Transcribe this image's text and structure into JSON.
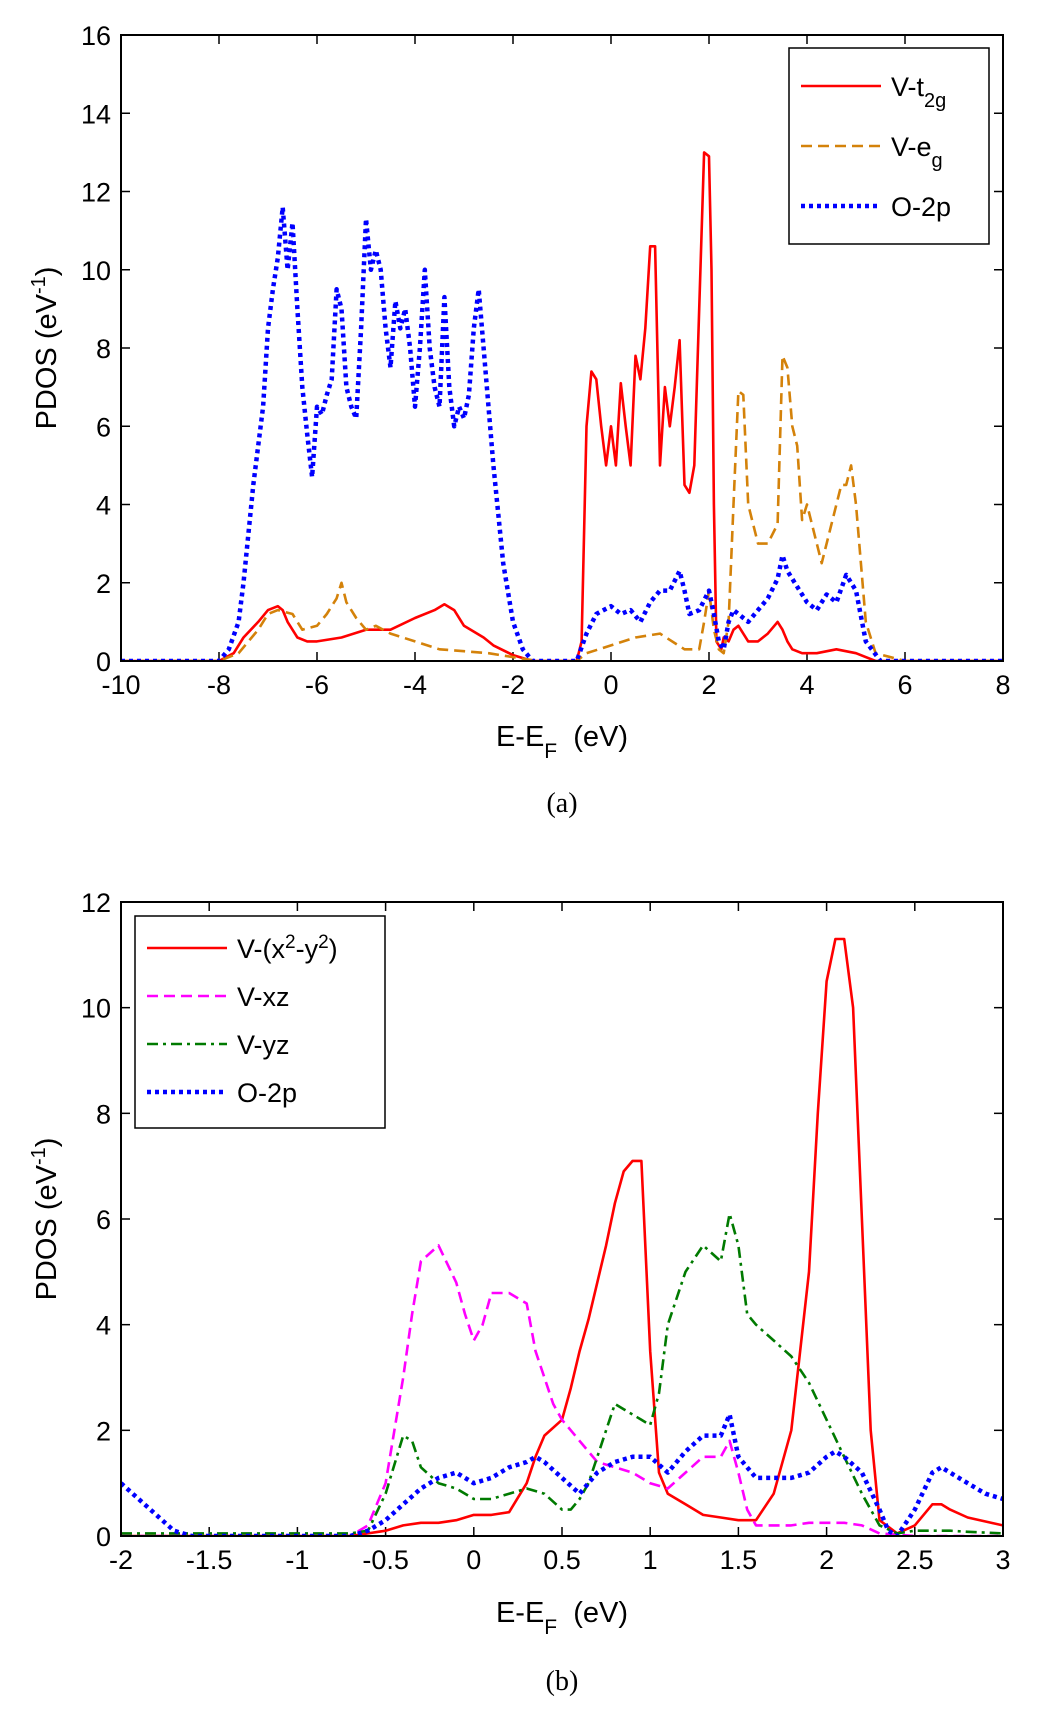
{
  "chart_data": [
    {
      "type": "line",
      "panel_label": "(a)",
      "xlabel": {
        "main": "E-E",
        "sub": "F",
        "unit": "(eV)"
      },
      "ylabel": {
        "main": "PDOS (eV",
        "sup": "-1",
        "close": ")"
      },
      "xlim": [
        -10,
        8
      ],
      "ylim": [
        0,
        16
      ],
      "xticks": [
        -10,
        -8,
        -6,
        -4,
        -2,
        0,
        2,
        4,
        6,
        8
      ],
      "xtick_labels": [
        "-10",
        "-8",
        "-6",
        "-4",
        "-2",
        "0",
        "2",
        "4",
        "6",
        "8"
      ],
      "yticks": [
        0,
        2,
        4,
        6,
        8,
        10,
        12,
        14,
        16
      ],
      "ytick_labels": [
        "0",
        "2",
        "4",
        "6",
        "8",
        "10",
        "12",
        "14",
        "16"
      ],
      "legend_position": "top-right",
      "series": [
        {
          "name": "V-t2g",
          "label_main": "V-t",
          "label_sub": "2g",
          "color": "#ff0000",
          "dash": "solid",
          "x": [
            -10,
            -8,
            -7.7,
            -7.5,
            -7.2,
            -7.0,
            -6.8,
            -6.7,
            -6.6,
            -6.4,
            -6.2,
            -6.0,
            -5.5,
            -5.0,
            -4.5,
            -4.0,
            -3.6,
            -3.4,
            -3.2,
            -3.0,
            -2.6,
            -2.4,
            -2.0,
            -1.6,
            -0.7,
            -0.6,
            -0.5,
            -0.4,
            -0.3,
            -0.2,
            -0.1,
            0,
            0.1,
            0.2,
            0.3,
            0.4,
            0.5,
            0.6,
            0.7,
            0.8,
            0.9,
            1.0,
            1.1,
            1.2,
            1.3,
            1.4,
            1.5,
            1.6,
            1.7,
            1.8,
            1.9,
            2.0,
            2.05,
            2.1,
            2.15,
            2.25,
            2.3,
            2.4,
            2.5,
            2.6,
            2.8,
            3.0,
            3.2,
            3.4,
            3.5,
            3.6,
            3.7,
            3.9,
            4.2,
            4.6,
            5.0,
            5.4,
            6,
            8
          ],
          "y": [
            0,
            0,
            0.2,
            0.6,
            1.0,
            1.3,
            1.4,
            1.3,
            1.0,
            0.6,
            0.5,
            0.5,
            0.6,
            0.8,
            0.8,
            1.1,
            1.3,
            1.45,
            1.3,
            0.9,
            0.6,
            0.4,
            0.15,
            0,
            0,
            0.5,
            6.0,
            7.4,
            7.2,
            6.0,
            5.0,
            6.0,
            5.0,
            7.1,
            6.0,
            5.0,
            7.8,
            7.2,
            8.5,
            10.6,
            10.6,
            5.0,
            7.0,
            6.0,
            7.0,
            8.2,
            4.5,
            4.3,
            5.0,
            9.0,
            13.0,
            12.9,
            10.0,
            4.0,
            0.5,
            0.3,
            0.6,
            0.5,
            0.8,
            0.9,
            0.5,
            0.5,
            0.7,
            1.0,
            0.8,
            0.5,
            0.3,
            0.2,
            0.2,
            0.3,
            0.2,
            0,
            0,
            0
          ]
        },
        {
          "name": "V-eg",
          "label_main": "V-e",
          "label_sub": "g",
          "color": "#d4820a",
          "dash": "dashed",
          "x": [
            -10,
            -8,
            -7.6,
            -7.2,
            -7.0,
            -6.8,
            -6.5,
            -6.3,
            -6.0,
            -5.8,
            -5.6,
            -5.5,
            -5.4,
            -5.2,
            -5.0,
            -4.8,
            -4.5,
            -4.0,
            -3.5,
            -3.0,
            -2.5,
            -2.0,
            -1.5,
            -0.7,
            -0.5,
            0,
            0.5,
            1.0,
            1.5,
            1.8,
            1.9,
            2.0,
            2.1,
            2.2,
            2.3,
            2.4,
            2.5,
            2.6,
            2.7,
            2.8,
            3.0,
            3.2,
            3.4,
            3.5,
            3.6,
            3.7,
            3.8,
            3.9,
            4.0,
            4.2,
            4.3,
            4.5,
            4.7,
            4.8,
            4.9,
            5.0,
            5.2,
            5.4,
            6,
            8
          ],
          "y": [
            0,
            0,
            0.2,
            0.8,
            1.2,
            1.3,
            1.2,
            0.8,
            0.9,
            1.2,
            1.6,
            2.0,
            1.5,
            1.1,
            0.8,
            0.9,
            0.7,
            0.5,
            0.3,
            0.25,
            0.2,
            0.1,
            0,
            0,
            0.2,
            0.4,
            0.6,
            0.7,
            0.3,
            0.3,
            1.0,
            1.8,
            0.8,
            0.3,
            0.2,
            1.0,
            4.0,
            6.9,
            6.8,
            4.0,
            3.0,
            3.0,
            3.5,
            7.8,
            7.5,
            6.0,
            5.5,
            3.6,
            4.0,
            3.0,
            2.5,
            3.5,
            4.5,
            4.5,
            5.0,
            4.0,
            1.0,
            0.2,
            0,
            0
          ]
        },
        {
          "name": "O-2p",
          "label_main": "O-2p",
          "label_sub": "",
          "color": "#0000ff",
          "dash": "dotted",
          "x": [
            -10,
            -8,
            -7.8,
            -7.6,
            -7.5,
            -7.3,
            -7.1,
            -7.0,
            -6.9,
            -6.8,
            -6.7,
            -6.6,
            -6.5,
            -6.4,
            -6.3,
            -6.2,
            -6.1,
            -6.0,
            -5.9,
            -5.8,
            -5.7,
            -5.6,
            -5.5,
            -5.4,
            -5.3,
            -5.2,
            -5.1,
            -5.0,
            -4.9,
            -4.8,
            -4.7,
            -4.6,
            -4.5,
            -4.4,
            -4.3,
            -4.2,
            -4.1,
            -4.0,
            -3.9,
            -3.8,
            -3.7,
            -3.6,
            -3.5,
            -3.4,
            -3.3,
            -3.2,
            -3.1,
            -3.0,
            -2.9,
            -2.8,
            -2.7,
            -2.6,
            -2.5,
            -2.4,
            -2.2,
            -2.0,
            -1.8,
            -1.6,
            -0.7,
            -0.5,
            -0.3,
            0,
            0.2,
            0.4,
            0.6,
            0.8,
            1.0,
            1.2,
            1.4,
            1.5,
            1.6,
            1.8,
            2.0,
            2.1,
            2.2,
            2.3,
            2.4,
            2.5,
            2.6,
            2.8,
            3.0,
            3.2,
            3.4,
            3.5,
            3.6,
            3.8,
            4.0,
            4.2,
            4.4,
            4.6,
            4.8,
            5.0,
            5.2,
            5.5,
            6,
            8
          ],
          "y": [
            0,
            0,
            0.3,
            1.0,
            2.0,
            4.5,
            6.5,
            8.5,
            9.5,
            10.3,
            11.6,
            10.0,
            11.2,
            9.0,
            7.0,
            5.8,
            4.7,
            6.5,
            6.3,
            6.8,
            7.2,
            9.5,
            9.0,
            7.0,
            6.5,
            6.2,
            8.5,
            11.3,
            10.0,
            10.5,
            10.0,
            8.5,
            7.5,
            9.2,
            8.5,
            9.0,
            8.0,
            6.5,
            8.0,
            10.0,
            8.0,
            7.0,
            6.5,
            9.3,
            7.0,
            6.0,
            6.5,
            6.2,
            6.8,
            8.5,
            9.5,
            8.0,
            6.5,
            5.0,
            2.5,
            1.0,
            0.3,
            0,
            0,
            0.7,
            1.2,
            1.4,
            1.2,
            1.3,
            1.0,
            1.5,
            1.8,
            1.8,
            2.3,
            1.8,
            1.2,
            1.3,
            1.8,
            1.2,
            0.5,
            0.3,
            1.0,
            1.3,
            1.2,
            1.0,
            1.3,
            1.6,
            2.1,
            2.7,
            2.3,
            1.9,
            1.5,
            1.3,
            1.7,
            1.5,
            2.2,
            1.8,
            0.5,
            0,
            0,
            0
          ]
        }
      ]
    },
    {
      "type": "line",
      "panel_label": "(b)",
      "xlabel": {
        "main": "E-E",
        "sub": "F",
        "unit": "(eV)"
      },
      "ylabel": {
        "main": "PDOS (eV",
        "sup": "-1",
        "close": ")"
      },
      "xlim": [
        -2,
        3
      ],
      "ylim": [
        0,
        12
      ],
      "xticks": [
        -2,
        -1.5,
        -1,
        -0.5,
        0,
        0.5,
        1,
        1.5,
        2,
        2.5,
        3
      ],
      "xtick_labels": [
        "-2",
        "-1.5",
        "-1",
        "-0.5",
        "0",
        "0.5",
        "1",
        "1.5",
        "2",
        "2.5",
        "3"
      ],
      "yticks": [
        0,
        2,
        4,
        6,
        8,
        10,
        12
      ],
      "ytick_labels": [
        "0",
        "2",
        "4",
        "6",
        "8",
        "10",
        "12"
      ],
      "legend_position": "top-left",
      "series": [
        {
          "name": "V-(x2-y2)",
          "label_main": "V-(x",
          "label_sup1": "2",
          "label_mid": "-y",
          "label_sup2": "2",
          "label_end": ")",
          "color": "#ff0000",
          "dash": "solid",
          "x": [
            -2,
            -0.7,
            -0.6,
            -0.5,
            -0.4,
            -0.3,
            -0.2,
            -0.1,
            0,
            0.05,
            0.1,
            0.2,
            0.3,
            0.35,
            0.4,
            0.5,
            0.55,
            0.6,
            0.65,
            0.7,
            0.75,
            0.8,
            0.85,
            0.9,
            0.95,
            1.0,
            1.05,
            1.1,
            1.2,
            1.3,
            1.4,
            1.5,
            1.6,
            1.7,
            1.8,
            1.9,
            1.95,
            2.0,
            2.05,
            2.1,
            2.15,
            2.2,
            2.25,
            2.3,
            2.4,
            2.5,
            2.6,
            2.65,
            2.7,
            2.8,
            3.0
          ],
          "y": [
            0,
            0,
            0.05,
            0.1,
            0.2,
            0.25,
            0.25,
            0.3,
            0.4,
            0.4,
            0.4,
            0.45,
            1.0,
            1.5,
            1.9,
            2.2,
            2.8,
            3.5,
            4.1,
            4.8,
            5.5,
            6.3,
            6.9,
            7.1,
            7.1,
            3.5,
            1.2,
            0.8,
            0.6,
            0.4,
            0.35,
            0.3,
            0.3,
            0.8,
            2.0,
            5.0,
            8.0,
            10.5,
            11.3,
            11.3,
            10.0,
            6.0,
            2.0,
            0.3,
            0.05,
            0.2,
            0.6,
            0.6,
            0.5,
            0.35,
            0.2
          ]
        },
        {
          "name": "V-xz",
          "label_main": "V-xz",
          "color": "#ff00ff",
          "dash": "dashed",
          "x": [
            -2,
            -0.7,
            -0.6,
            -0.5,
            -0.45,
            -0.4,
            -0.35,
            -0.3,
            -0.2,
            -0.1,
            -0.05,
            0,
            0.05,
            0.1,
            0.2,
            0.3,
            0.35,
            0.4,
            0.45,
            0.5,
            0.55,
            0.6,
            0.7,
            0.8,
            0.9,
            1.0,
            1.1,
            1.2,
            1.3,
            1.4,
            1.45,
            1.5,
            1.55,
            1.6,
            1.7,
            1.8,
            1.9,
            2.0,
            2.1,
            2.2,
            2.3,
            2.5,
            3.0
          ],
          "y": [
            0,
            0,
            0.2,
            1.0,
            2.0,
            3.0,
            4.2,
            5.2,
            5.5,
            4.8,
            4.2,
            3.7,
            4.0,
            4.6,
            4.6,
            4.4,
            3.5,
            3.0,
            2.5,
            2.2,
            2.0,
            1.8,
            1.4,
            1.3,
            1.2,
            1.0,
            0.9,
            1.2,
            1.5,
            1.5,
            1.8,
            1.2,
            0.5,
            0.2,
            0.2,
            0.2,
            0.25,
            0.25,
            0.25,
            0.2,
            0.05,
            0,
            0
          ]
        },
        {
          "name": "V-yz",
          "label_main": "V-yz",
          "color": "#007a00",
          "dash": "dashdot",
          "x": [
            -2,
            -0.7,
            -0.6,
            -0.5,
            -0.4,
            -0.35,
            -0.3,
            -0.2,
            -0.1,
            0,
            0.1,
            0.2,
            0.3,
            0.4,
            0.5,
            0.55,
            0.6,
            0.65,
            0.7,
            0.75,
            0.8,
            0.85,
            0.9,
            0.95,
            1.0,
            1.05,
            1.1,
            1.2,
            1.3,
            1.4,
            1.45,
            1.5,
            1.55,
            1.6,
            1.7,
            1.8,
            1.9,
            2.0,
            2.1,
            2.2,
            2.3,
            2.4,
            2.5,
            2.6,
            2.7,
            2.8,
            3.0
          ],
          "y": [
            0.05,
            0.05,
            0.1,
            0.8,
            1.9,
            1.8,
            1.3,
            1.0,
            0.9,
            0.7,
            0.7,
            0.8,
            0.9,
            0.8,
            0.5,
            0.5,
            0.7,
            1.0,
            1.5,
            2.0,
            2.5,
            2.4,
            2.3,
            2.2,
            2.1,
            2.7,
            4.0,
            5.0,
            5.5,
            5.2,
            6.1,
            5.5,
            4.2,
            4.0,
            3.7,
            3.4,
            2.9,
            2.2,
            1.5,
            0.8,
            0.2,
            0.05,
            0.1,
            0.1,
            0.1,
            0.08,
            0.05
          ]
        },
        {
          "name": "O-2p",
          "label_main": "O-2p",
          "color": "#0000ff",
          "dash": "dotted",
          "x": [
            -2,
            -1.9,
            -1.8,
            -1.7,
            -1.6,
            -0.7,
            -0.6,
            -0.5,
            -0.4,
            -0.3,
            -0.2,
            -0.1,
            0,
            0.1,
            0.2,
            0.3,
            0.35,
            0.4,
            0.5,
            0.6,
            0.7,
            0.8,
            0.9,
            1.0,
            1.1,
            1.2,
            1.3,
            1.4,
            1.45,
            1.5,
            1.6,
            1.7,
            1.8,
            1.9,
            2.0,
            2.05,
            2.1,
            2.2,
            2.3,
            2.35,
            2.4,
            2.5,
            2.6,
            2.65,
            2.7,
            2.8,
            2.9,
            3.0
          ],
          "y": [
            1.0,
            0.7,
            0.4,
            0.1,
            0,
            0,
            0.1,
            0.3,
            0.6,
            0.9,
            1.1,
            1.2,
            1.0,
            1.1,
            1.3,
            1.4,
            1.5,
            1.4,
            1.1,
            0.8,
            1.2,
            1.4,
            1.5,
            1.5,
            1.2,
            1.6,
            1.9,
            1.9,
            2.3,
            1.5,
            1.1,
            1.1,
            1.1,
            1.2,
            1.5,
            1.6,
            1.5,
            1.2,
            0.5,
            0.1,
            0,
            0.5,
            1.2,
            1.3,
            1.2,
            1.0,
            0.8,
            0.7
          ]
        }
      ]
    }
  ]
}
